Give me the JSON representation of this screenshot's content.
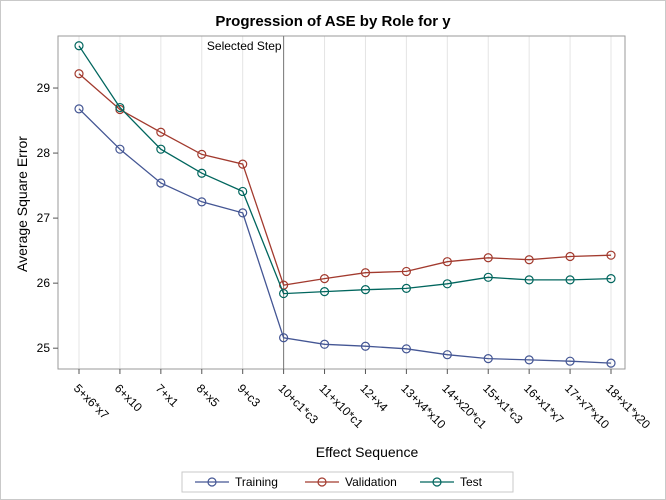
{
  "chart_data": {
    "type": "line",
    "title": "Progression of ASE by Role for y",
    "xlabel": "Effect Sequence",
    "ylabel": "Average Square Error",
    "categories": [
      "5+x6*x7",
      "6+x10",
      "7+x1",
      "8+x5",
      "9+c3",
      "10+c1*c3",
      "11+x10*c1",
      "12+x4",
      "13+x4*x10",
      "14+x20*c1",
      "15+x1*c3",
      "16+x1*x7",
      "17+x7*x10",
      "18+x1*x20"
    ],
    "ylim": [
      24.68,
      29.8
    ],
    "yticks": [
      25,
      26,
      27,
      28,
      29
    ],
    "grid": "vertical",
    "legend_position": "bottom",
    "series": [
      {
        "name": "Training",
        "color": "#445694",
        "values": [
          28.68,
          28.06,
          27.54,
          27.25,
          27.08,
          25.16,
          25.06,
          25.03,
          24.99,
          24.9,
          24.84,
          24.82,
          24.8,
          24.77
        ]
      },
      {
        "name": "Validation",
        "color": "#a23a2e",
        "values": [
          29.22,
          28.67,
          28.32,
          27.98,
          27.83,
          25.97,
          26.07,
          26.16,
          26.18,
          26.33,
          26.39,
          26.36,
          26.41,
          26.43
        ]
      },
      {
        "name": "Test",
        "color": "#01665e",
        "values": [
          29.65,
          28.7,
          28.06,
          27.69,
          27.41,
          25.84,
          25.87,
          25.9,
          25.92,
          25.99,
          26.09,
          26.05,
          26.05,
          26.07
        ]
      }
    ],
    "annotations": [
      {
        "text": "Selected Step",
        "at_category": "10+c1*c3",
        "type": "reference-line"
      }
    ]
  }
}
